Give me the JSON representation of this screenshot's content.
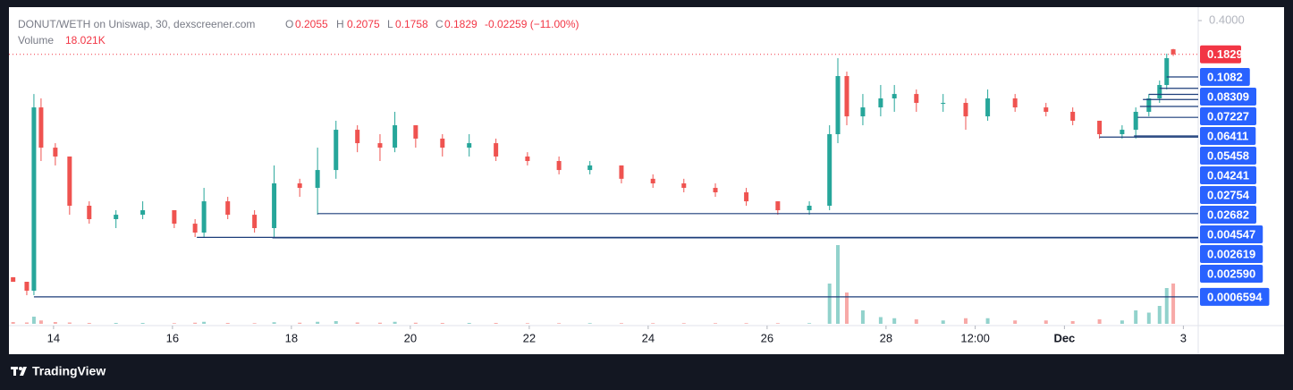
{
  "header": {
    "symbol": "DONUT/WETH on Uniswap, 30, dexscreener.com",
    "o_label": "O",
    "h_label": "H",
    "l_label": "L",
    "c_label": "C",
    "change": "-0.02259 (−11.00%)",
    "volume_label": "Volume"
  },
  "chart_data": {
    "type": "candlestick",
    "x": [
      13.32,
      13.55,
      13.67,
      13.79,
      14.03,
      14.27,
      14.6,
      15.05,
      15.5,
      16.03,
      16.38,
      16.53,
      16.93,
      17.38,
      17.71,
      18.14,
      18.44,
      18.75,
      19.11,
      19.49,
      19.74,
      20.09,
      20.54,
      20.99,
      21.44,
      21.97,
      22.5,
      23.02,
      23.55,
      24.08,
      24.6,
      25.13,
      25.65,
      26.18,
      26.71,
      27.05,
      27.19,
      27.34,
      27.61,
      27.91,
      28.14,
      28.51,
      28.96,
      29.34,
      29.71,
      30.17,
      30.69,
      31.14,
      31.59,
      31.97,
      32.2,
      32.42,
      32.6,
      32.72,
      32.83
    ],
    "open": [
      0.00104,
      0.000936,
      0.000761,
      0.0534,
      0.021,
      0.0171,
      0.00546,
      0.004,
      0.00443,
      0.00492,
      0.0036,
      0.00293,
      0.00605,
      0.00443,
      0.00325,
      0.00917,
      0.00826,
      0.0125,
      0.0318,
      0.0233,
      0.021,
      0.0353,
      0.0259,
      0.021,
      0.0233,
      0.0171,
      0.0154,
      0.0125,
      0.0139,
      0.0102,
      0.00917,
      0.00826,
      0.00745,
      0.00605,
      0.00492,
      0.00546,
      0.0287,
      0.1105,
      0.0434,
      0.0534,
      0.0658,
      0.0729,
      0.0593,
      0.0593,
      0.0434,
      0.0658,
      0.0534,
      0.0482,
      0.0392,
      0.0287,
      0.0318,
      0.0482,
      0.0658,
      0.0898,
      0.2055
    ],
    "high": [
      0.00104,
      0.000936,
      0.0729,
      0.0658,
      0.0233,
      0.0171,
      0.00605,
      0.00492,
      0.00605,
      0.00492,
      0.004,
      0.00826,
      0.00671,
      0.00492,
      0.0139,
      0.0102,
      0.021,
      0.0392,
      0.0353,
      0.0287,
      0.0482,
      0.0353,
      0.0287,
      0.0287,
      0.0259,
      0.0189,
      0.0171,
      0.0154,
      0.0139,
      0.0113,
      0.0102,
      0.00917,
      0.00826,
      0.00605,
      0.00605,
      0.0353,
      0.1673,
      0.1225,
      0.0729,
      0.0898,
      0.0898,
      0.0809,
      0.0729,
      0.0658,
      0.0809,
      0.0729,
      0.0593,
      0.0534,
      0.0392,
      0.0353,
      0.0534,
      0.0729,
      0.0996,
      0.1855,
      0.2075
    ],
    "low": [
      0.000936,
      0.000685,
      0.000685,
      0.0154,
      0.0139,
      0.00443,
      0.0036,
      0.00325,
      0.004,
      0.00325,
      0.00264,
      0.00264,
      0.004,
      0.00293,
      0.00264,
      0.00671,
      0.00443,
      0.0102,
      0.0189,
      0.0154,
      0.0189,
      0.021,
      0.0171,
      0.0171,
      0.0154,
      0.0139,
      0.0113,
      0.0113,
      0.00917,
      0.00826,
      0.00745,
      0.00671,
      0.00546,
      0.00443,
      0.00443,
      0.00492,
      0.0233,
      0.0353,
      0.0353,
      0.0434,
      0.0482,
      0.0482,
      0.0482,
      0.0318,
      0.0392,
      0.0482,
      0.0434,
      0.0353,
      0.0259,
      0.0259,
      0.0259,
      0.0434,
      0.0593,
      0.0809,
      0.1758
    ],
    "close": [
      0.000936,
      0.000761,
      0.0534,
      0.021,
      0.0171,
      0.00546,
      0.004,
      0.00443,
      0.00492,
      0.0036,
      0.00293,
      0.00605,
      0.00443,
      0.00325,
      0.00917,
      0.00826,
      0.0125,
      0.0318,
      0.0233,
      0.021,
      0.0353,
      0.0259,
      0.021,
      0.0233,
      0.0171,
      0.0154,
      0.0125,
      0.0139,
      0.0102,
      0.00917,
      0.00826,
      0.00745,
      0.00605,
      0.00492,
      0.00546,
      0.0287,
      0.1105,
      0.0434,
      0.0534,
      0.0658,
      0.0729,
      0.0593,
      0.0593,
      0.0434,
      0.0658,
      0.0534,
      0.0482,
      0.0392,
      0.0287,
      0.0318,
      0.0482,
      0.0658,
      0.0898,
      0.1673,
      0.1829
    ],
    "up_color": "#26a69a",
    "down_color": "#ef5350",
    "volume": {
      "values": [
        800,
        600,
        3200,
        1500,
        800,
        600,
        400,
        400,
        400,
        300,
        500,
        900,
        400,
        300,
        700,
        500,
        900,
        1200,
        600,
        500,
        900,
        500,
        400,
        400,
        400,
        300,
        300,
        300,
        300,
        300,
        300,
        300,
        300,
        300,
        300,
        18000,
        35200,
        14000,
        6000,
        3000,
        2500,
        2000,
        1500,
        2500,
        2500,
        1500,
        1500,
        1200,
        2000,
        1500,
        6000,
        5000,
        8000,
        16000,
        18021
      ],
      "value_labels": [
        null,
        null,
        null,
        null,
        null,
        null,
        null,
        null,
        null,
        null,
        null,
        null,
        null,
        null,
        null,
        null,
        null,
        null,
        null,
        null,
        null,
        null,
        null,
        null,
        null,
        null,
        null,
        null,
        null,
        null,
        null,
        null,
        null,
        null,
        null,
        null,
        null,
        null,
        null,
        null,
        null,
        null,
        null,
        null,
        null,
        null,
        null,
        null,
        null,
        null,
        null,
        null,
        null,
        null,
        "18.021K"
      ]
    },
    "xlim": [
      13.25,
      33.25
    ],
    "xticks": [
      14,
      16,
      18,
      20,
      22,
      24,
      26,
      28,
      {
        "value": 29.5,
        "label": "12:00"
      },
      {
        "value": 31,
        "label": "Dec"
      },
      {
        "value": 33,
        "label": "3"
      }
    ],
    "ylim": [
      0.000353,
      0.524
    ],
    "log_scale": true,
    "yticks": [
      {
        "value": 0.4,
        "label": "0.4000"
      }
    ],
    "price_lines": [
      0.1082,
      0.08309,
      0.07227,
      0.06411,
      0.05458,
      0.04241,
      0.02754,
      0.02682,
      0.004547,
      0.002619,
      {
        "value": 0.00259,
        "label": "0.002590"
      },
      0.0006594
    ],
    "price_lines_x": [
      32.72,
      32.6,
      32.42,
      32.32,
      32.27,
      32.23,
      32.17,
      31.59,
      18.44,
      16.41,
      17.68,
      13.67
    ],
    "price_line_color": "#2962ff",
    "price_line_stroke": "#1c3d7a",
    "last_price_color": "#f23645"
  },
  "footer": {
    "brand": "TradingView"
  }
}
